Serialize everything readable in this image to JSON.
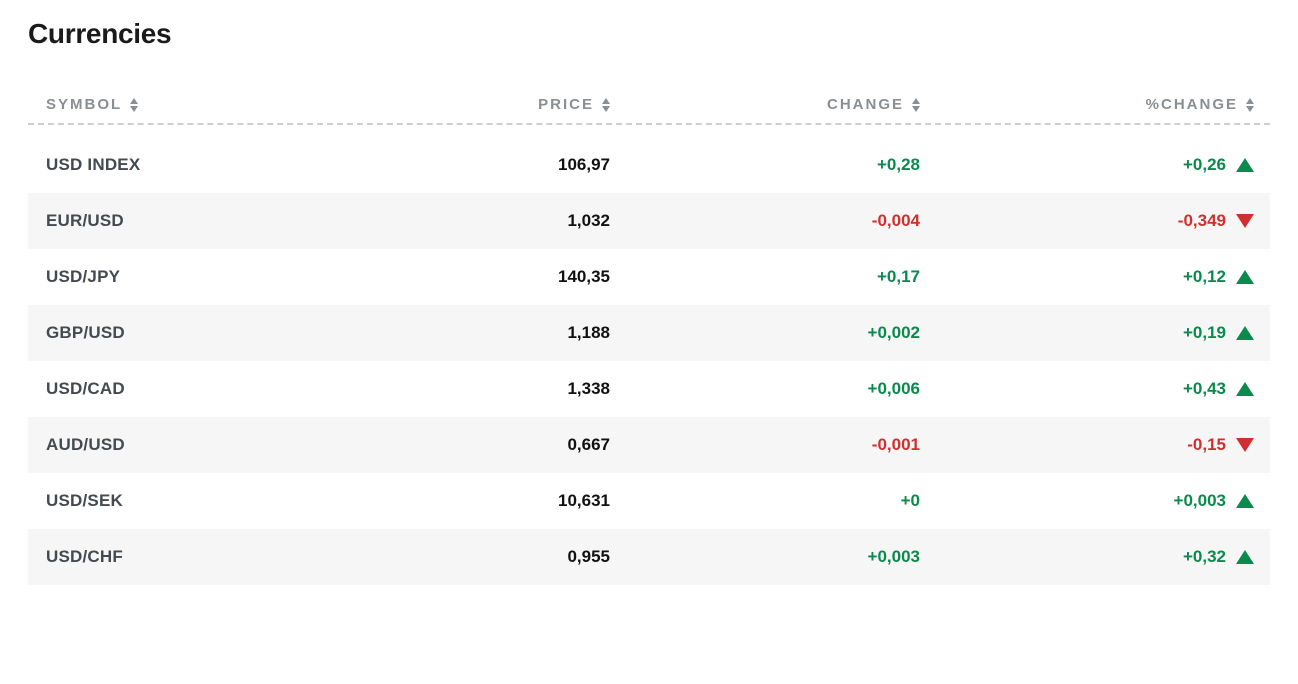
{
  "title": "Currencies",
  "columns": {
    "symbol": "SYMBOL",
    "price": "PRICE",
    "change": "CHANGE",
    "pct_change": "%CHANGE"
  },
  "colors": {
    "positive": "#0a8a4c",
    "negative": "#d12f2f",
    "header_text": "#8a8f94",
    "row_alt_bg": "#f6f6f6",
    "symbol_text": "#444a50",
    "price_text": "#111111",
    "divider": "#cfcfcf"
  },
  "rows": [
    {
      "symbol": "USD INDEX",
      "price": "106,97",
      "change": "+0,28",
      "change_dir": "pos",
      "pct": "+0,26",
      "pct_dir": "pos"
    },
    {
      "symbol": "EUR/USD",
      "price": "1,032",
      "change": "-0,004",
      "change_dir": "neg",
      "pct": "-0,349",
      "pct_dir": "neg"
    },
    {
      "symbol": "USD/JPY",
      "price": "140,35",
      "change": "+0,17",
      "change_dir": "pos",
      "pct": "+0,12",
      "pct_dir": "pos"
    },
    {
      "symbol": "GBP/USD",
      "price": "1,188",
      "change": "+0,002",
      "change_dir": "pos",
      "pct": "+0,19",
      "pct_dir": "pos"
    },
    {
      "symbol": "USD/CAD",
      "price": "1,338",
      "change": "+0,006",
      "change_dir": "pos",
      "pct": "+0,43",
      "pct_dir": "pos"
    },
    {
      "symbol": "AUD/USD",
      "price": "0,667",
      "change": "-0,001",
      "change_dir": "neg",
      "pct": "-0,15",
      "pct_dir": "neg"
    },
    {
      "symbol": "USD/SEK",
      "price": "10,631",
      "change": "+0",
      "change_dir": "pos",
      "pct": "+0,003",
      "pct_dir": "pos"
    },
    {
      "symbol": "USD/CHF",
      "price": "0,955",
      "change": "+0,003",
      "change_dir": "pos",
      "pct": "+0,32",
      "pct_dir": "pos"
    }
  ]
}
